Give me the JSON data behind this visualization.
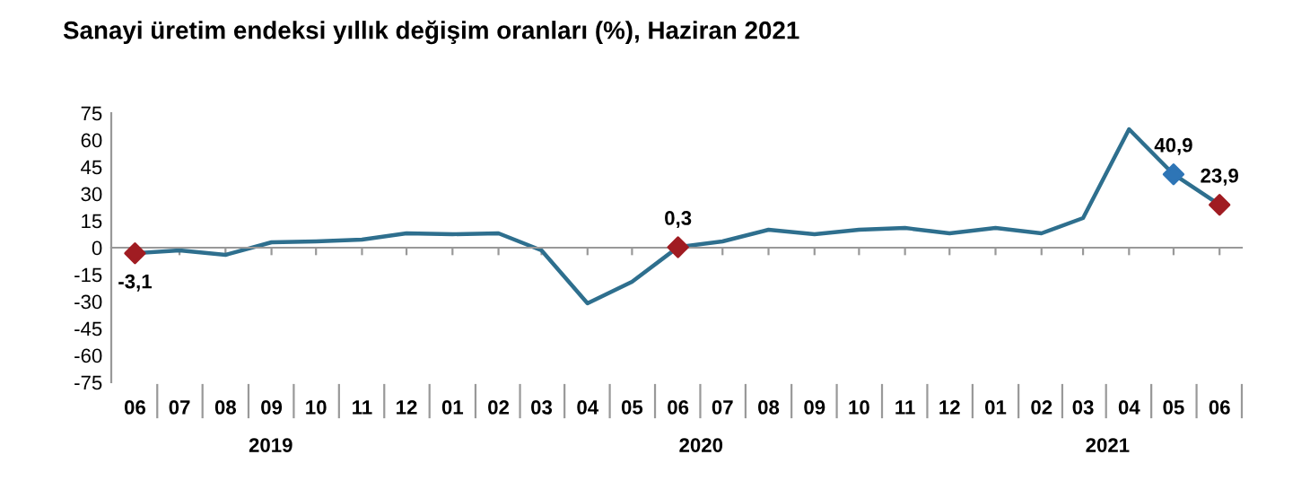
{
  "chart_data": {
    "type": "line",
    "title": "Sanayi üretim endeksi yıllık değişim oranları (%), Haziran 2021",
    "x": [
      "2019-06",
      "2019-07",
      "2019-08",
      "2019-09",
      "2019-10",
      "2019-11",
      "2019-12",
      "2020-01",
      "2020-02",
      "2020-03",
      "2020-04",
      "2020-05",
      "2020-06",
      "2020-07",
      "2020-08",
      "2020-09",
      "2020-10",
      "2020-11",
      "2020-12",
      "2021-01",
      "2021-02",
      "2021-03",
      "2021-04",
      "2021-05",
      "2021-06"
    ],
    "series": [
      {
        "color": "#2e6f8e",
        "values": [
          -3.1,
          -1.5,
          -4,
          3,
          3.5,
          4.5,
          8,
          7.5,
          8,
          -1.5,
          -31,
          -19,
          0.3,
          3.5,
          10,
          7.5,
          10,
          11,
          8,
          11,
          8,
          16.5,
          66,
          40.9,
          23.9
        ]
      },
      {
        "type": "scatter",
        "color": "#a01c22",
        "marker": "diamond",
        "x": [
          "2019-06",
          "2020-06",
          "2021-06"
        ],
        "values": [
          -3.1,
          0.3,
          23.9
        ],
        "value_labels": [
          "-3,1",
          "0,3",
          "23,9"
        ]
      },
      {
        "type": "scatter",
        "color": "#2e75b6",
        "marker": "diamond",
        "x": [
          "2021-05"
        ],
        "values": [
          40.9
        ],
        "value_labels": [
          "40,9"
        ]
      }
    ],
    "xlim": [
      "2019-05-16",
      "2021-06-16"
    ],
    "xticks": [
      {
        "value": "2019-06",
        "label": "06"
      },
      {
        "value": "2019-07",
        "label": "07"
      },
      {
        "value": "2019-08",
        "label": "08"
      },
      {
        "value": "2019-09",
        "label": "09"
      },
      {
        "value": "2019-10",
        "label": "10"
      },
      {
        "value": "2019-11",
        "label": "11"
      },
      {
        "value": "2019-12",
        "label": "12"
      },
      {
        "value": "2020-01",
        "label": "01"
      },
      {
        "value": "2020-02",
        "label": "02"
      },
      {
        "value": "2020-03",
        "label": "03"
      },
      {
        "value": "2020-04",
        "label": "04"
      },
      {
        "value": "2020-05",
        "label": "05"
      },
      {
        "value": "2020-06",
        "label": "06"
      },
      {
        "value": "2020-07",
        "label": "07"
      },
      {
        "value": "2020-08",
        "label": "08"
      },
      {
        "value": "2020-09",
        "label": "09"
      },
      {
        "value": "2020-10",
        "label": "10"
      },
      {
        "value": "2020-11",
        "label": "11"
      },
      {
        "value": "2020-12",
        "label": "12"
      },
      {
        "value": "2021-01",
        "label": "01"
      },
      {
        "value": "2021-02",
        "label": "02"
      },
      {
        "value": "2021-03",
        "label": "03"
      },
      {
        "value": "2021-04",
        "label": "04"
      },
      {
        "value": "2021-05",
        "label": "05"
      },
      {
        "value": "2021-06",
        "label": "06"
      }
    ],
    "ylim": [
      -75,
      75
    ],
    "yticks": [
      -75,
      -60,
      -45,
      -30,
      -15,
      0,
      15,
      30,
      45,
      60,
      75
    ],
    "annotations": [
      "2019",
      "2020",
      "2021"
    ],
    "legend": false
  }
}
